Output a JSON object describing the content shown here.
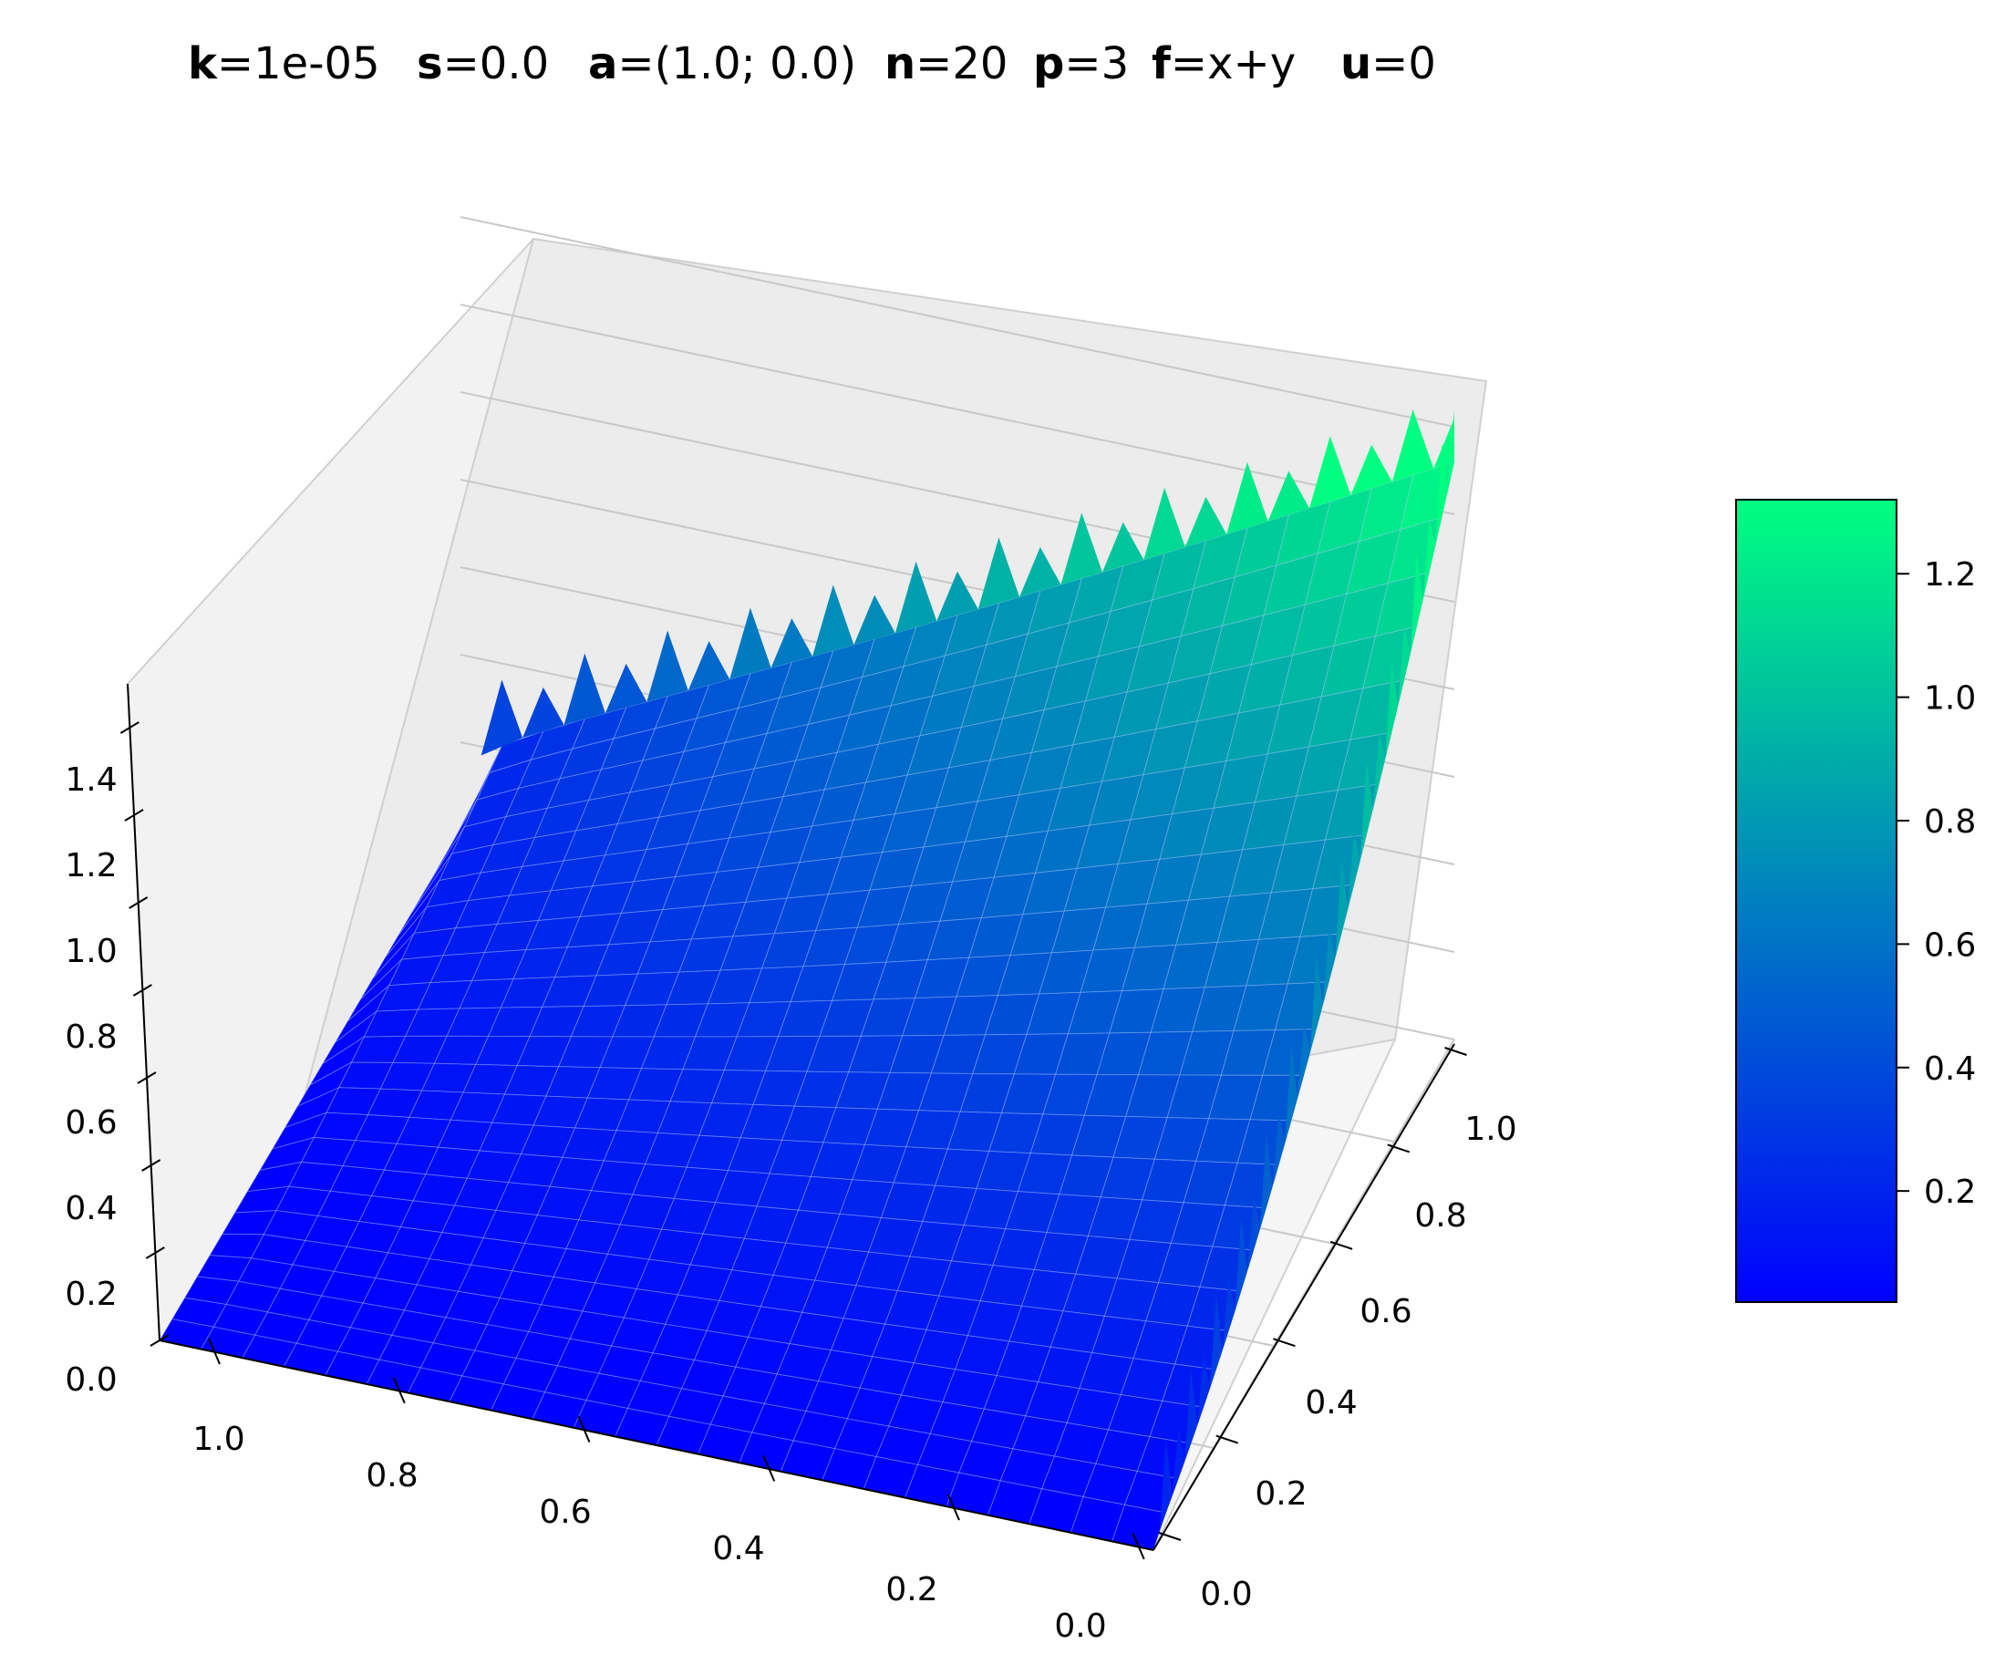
{
  "title_params": [
    {
      "key": "k",
      "eq": "=1e-05"
    },
    {
      "key": "s",
      "eq": "=0.0"
    },
    {
      "key": "a",
      "eq": "=(1.0; 0.0)"
    },
    {
      "key": "n",
      "eq": "=20"
    },
    {
      "key": "p",
      "eq": "=3"
    },
    {
      "key": "f",
      "eq": "=x+y"
    },
    {
      "key": "u",
      "eq": "=0"
    }
  ],
  "colors": {
    "low": "#0000ff",
    "high": "#00ff80",
    "pane": "#f2f2f2",
    "grid": "#c8c8c8"
  },
  "chart_data": {
    "type": "surface3d",
    "colormap": "winter",
    "x_axis": {
      "ticks": [
        "0.0",
        "0.2",
        "0.4",
        "0.6",
        "0.8",
        "1.0"
      ],
      "range": [
        0,
        1
      ]
    },
    "y_axis": {
      "ticks": [
        "0.0",
        "0.2",
        "0.4",
        "0.6",
        "0.8",
        "1.0"
      ],
      "range": [
        0,
        1
      ]
    },
    "z_axis": {
      "ticks": [
        "0.0",
        "0.2",
        "0.4",
        "0.6",
        "0.8",
        "1.0",
        "1.2",
        "1.4"
      ],
      "range": [
        0,
        1.5
      ]
    },
    "colorbar": {
      "ticks": [
        "0.2",
        "0.4",
        "0.6",
        "0.8",
        "1.0",
        "1.2"
      ],
      "range": [
        0.02,
        1.32
      ]
    },
    "surface_corner_values": {
      "x0_y0": 0.0,
      "x0_y1": 0.3,
      "x1_y0": 0.2,
      "x1_y1": 1.32,
      "peak": 1.55
    },
    "legend": "colorbar-right"
  }
}
